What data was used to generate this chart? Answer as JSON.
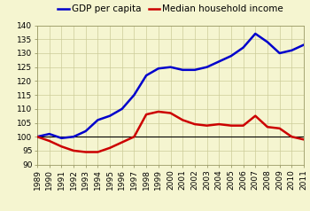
{
  "background_color": "#f5f5d0",
  "gdp_color": "#0000cc",
  "income_color": "#cc0000",
  "baseline_color": "#000000",
  "legend_gdp": "GDP per capita",
  "legend_income": "Median household income",
  "xlim": [
    1989,
    2011
  ],
  "ylim": [
    90,
    140
  ],
  "yticks": [
    90,
    95,
    100,
    105,
    110,
    115,
    120,
    125,
    130,
    135,
    140
  ],
  "xticks": [
    1989,
    1990,
    1991,
    1992,
    1993,
    1994,
    1995,
    1996,
    1997,
    1998,
    1999,
    2000,
    2001,
    2002,
    2003,
    2004,
    2005,
    2006,
    2007,
    2008,
    2009,
    2010,
    2011
  ],
  "gdp_x": [
    1989,
    1990,
    1991,
    1992,
    1993,
    1994,
    1995,
    1996,
    1997,
    1998,
    1999,
    2000,
    2001,
    2002,
    2003,
    2004,
    2005,
    2006,
    2007,
    2008,
    2009,
    2010,
    2011
  ],
  "gdp_y": [
    100,
    101,
    99.5,
    100,
    102,
    106,
    107.5,
    110,
    115,
    122,
    124.5,
    125,
    124,
    124,
    125,
    127,
    129,
    132,
    137,
    134,
    130,
    131,
    133
  ],
  "income_x": [
    1989,
    1990,
    1991,
    1992,
    1993,
    1994,
    1995,
    1996,
    1997,
    1998,
    1999,
    2000,
    2001,
    2002,
    2003,
    2004,
    2005,
    2006,
    2007,
    2008,
    2009,
    2010,
    2011
  ],
  "income_y": [
    100,
    98.5,
    96.5,
    95,
    94.5,
    94.5,
    96,
    98,
    100,
    108,
    109,
    108.5,
    106,
    104.5,
    104,
    104.5,
    104,
    104,
    107.5,
    103.5,
    103,
    100,
    99
  ],
  "linewidth": 1.8,
  "tick_fontsize": 6.5,
  "legend_fontsize": 7.5,
  "grid_color": "#cccc99",
  "spine_color": "#999966"
}
